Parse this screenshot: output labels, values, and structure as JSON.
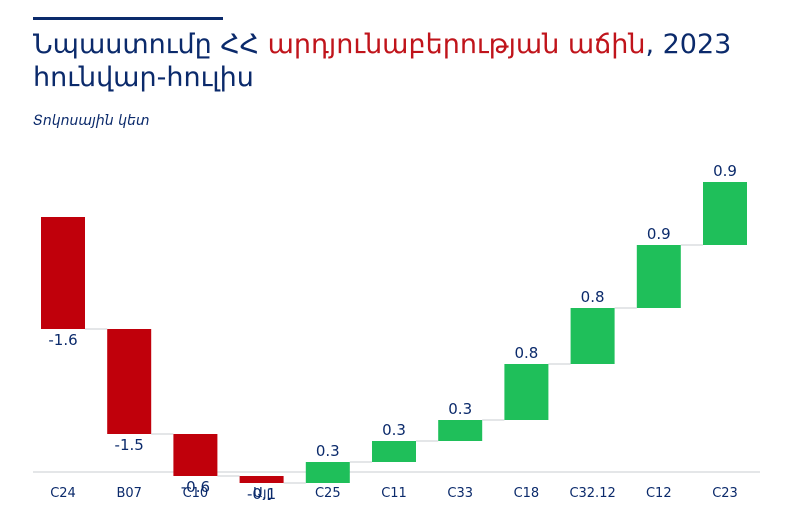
{
  "title": {
    "part1": "Նպաստումը ՀՀ ",
    "highlight": "արդյունաբերության աճին",
    "part2": ", 2023 հունվար-հուլիս"
  },
  "subtitle": "Տոկոսային կետ",
  "colors": {
    "negative": "#c0000b",
    "positive": "#1fbf5a",
    "text": "#0b2a6b",
    "highlight": "#c0141b",
    "connector": "#c8ccd2"
  },
  "chart_data": {
    "type": "bar",
    "subtype": "waterfall",
    "categories": [
      "C24",
      "B07",
      "C10",
      "Այլ",
      "C25",
      "C11",
      "C33",
      "C18",
      "C32.12",
      "C12",
      "C23"
    ],
    "values": [
      -1.6,
      -1.5,
      -0.6,
      -0.1,
      0.3,
      0.3,
      0.3,
      0.8,
      0.8,
      0.9,
      0.9
    ],
    "data_labels": [
      "-1.6",
      "-1.5",
      "-0.6",
      "-0.1",
      "0.3",
      "0.3",
      "0.3",
      "0.8",
      "0.8",
      "0.9",
      "0.9"
    ],
    "xlabel": "",
    "ylabel": "",
    "grid": false,
    "legend": "none"
  }
}
